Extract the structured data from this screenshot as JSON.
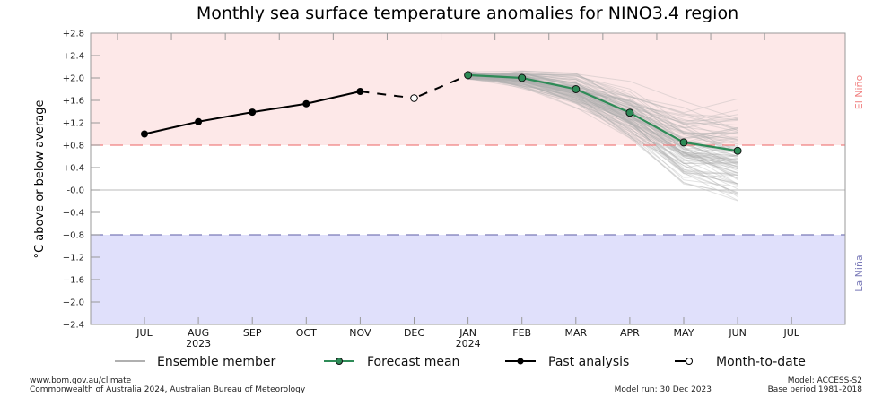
{
  "chart_data": {
    "type": "line",
    "title": "Monthly sea surface temperature anomalies for NINO3.4 region",
    "ylabel": "°C above or below average",
    "xlabel": "",
    "ylim": [
      -2.4,
      2.8
    ],
    "yticks": [
      "+2.8",
      "+2.4",
      "+2.0",
      "+1.6",
      "+1.2",
      "+0.8",
      "+0.4",
      "-0.0",
      "−0.4",
      "−0.8",
      "−1.2",
      "−1.6",
      "−2.0",
      "−2.4"
    ],
    "ytick_values": [
      2.8,
      2.4,
      2.0,
      1.6,
      1.2,
      0.8,
      0.4,
      0.0,
      -0.4,
      -0.8,
      -1.2,
      -1.6,
      -2.0,
      -2.4
    ],
    "categories": [
      "JUL",
      "AUG",
      "SEP",
      "OCT",
      "NOV",
      "DEC",
      "JAN",
      "FEB",
      "MAR",
      "APR",
      "MAY",
      "JUN",
      "JUL"
    ],
    "year_labels": [
      {
        "index": 1,
        "label": "2023"
      },
      {
        "index": 6,
        "label": "2024"
      }
    ],
    "thresholds": {
      "el_nino": {
        "value": 0.8,
        "label": "El Niño",
        "color": "#f08080",
        "fill": "#fde8e8"
      },
      "la_nina": {
        "value": -0.8,
        "label": "La Niña",
        "color": "#7a7ab8",
        "fill": "#e0e0fb"
      }
    },
    "grid": "zero line only",
    "series": [
      {
        "name": "Past analysis",
        "color": "#000000",
        "style": "solid-filled-marker",
        "x_index": [
          0,
          1,
          2,
          3,
          4
        ],
        "values": [
          1.0,
          1.22,
          1.39,
          1.54,
          1.76
        ]
      },
      {
        "name": "Month-to-date",
        "color": "#000000",
        "style": "open-marker",
        "x_index": [
          5
        ],
        "values": [
          1.64
        ]
      },
      {
        "name": "Forecast mean",
        "color": "#2e8b57",
        "style": "green-marker",
        "x_index": [
          6,
          7,
          8,
          9,
          10,
          11
        ],
        "values": [
          2.05,
          2.0,
          1.8,
          1.38,
          0.85,
          0.7
        ]
      }
    ],
    "ensemble": {
      "name": "Ensemble member",
      "color": "#b0b0b0",
      "x_index": [
        6,
        7,
        8,
        9,
        10,
        11
      ],
      "approx_count": 99,
      "spread_at_last": [
        -0.6,
        1.55
      ]
    },
    "legend": {
      "placement": "bottom",
      "entries": [
        "Ensemble member",
        "Forecast mean",
        "Past analysis",
        "Month-to-date"
      ]
    }
  },
  "footer": {
    "left_line1": "www.bom.gov.au/climate",
    "left_line2": "Commonwealth of Australia 2024, Australian Bureau of Meteorology",
    "model_run": "Model run: 30 Dec 2023",
    "model": "Model: ACCESS-S2",
    "base_period": "Base period 1981-2018"
  }
}
